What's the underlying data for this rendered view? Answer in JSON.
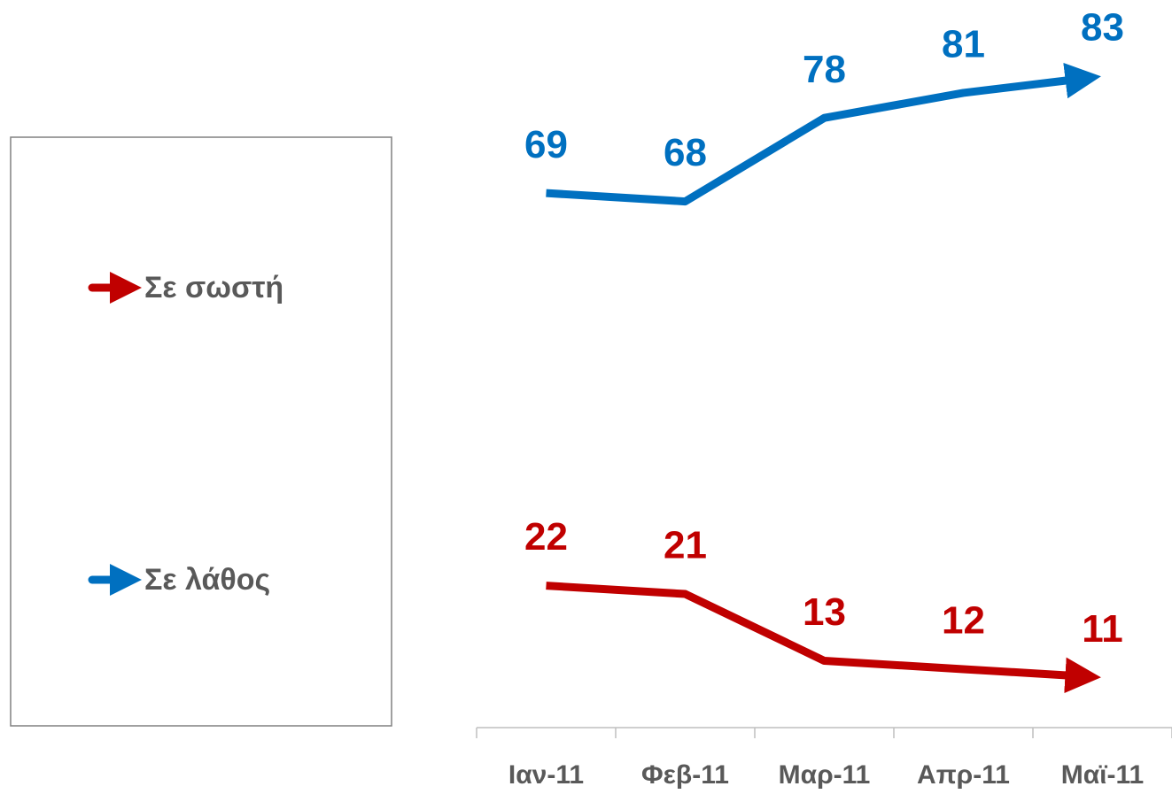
{
  "chart_data": {
    "type": "line",
    "categories": [
      "Ιαν-11",
      "Φεβ-11",
      "Μαρ-11",
      "Απρ-11",
      "Μαϊ-11"
    ],
    "series": [
      {
        "name": "Σε σωστή",
        "color": "#c00000",
        "values": [
          22,
          21,
          13,
          12,
          11
        ]
      },
      {
        "name": "Σε λάθος",
        "color": "#0070c0",
        "values": [
          69,
          68,
          78,
          81,
          83
        ]
      }
    ],
    "ylim": [
      5,
      90
    ],
    "legend": "left",
    "grid": false
  }
}
